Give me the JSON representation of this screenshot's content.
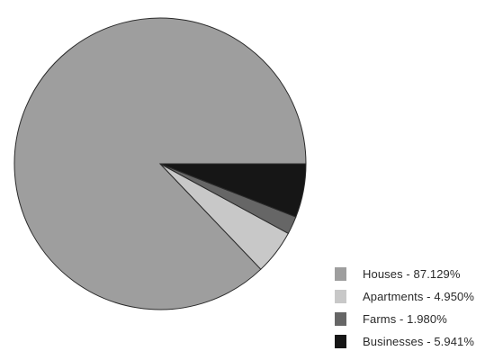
{
  "chart_data": {
    "type": "pie",
    "title": "",
    "slices": [
      {
        "label": "Houses",
        "value": 87.129,
        "legend_text": "Houses - 87.129%",
        "color": "#9e9e9e"
      },
      {
        "label": "Apartments",
        "value": 4.95,
        "legend_text": "Apartments - 4.950%",
        "color": "#c8c8c8"
      },
      {
        "label": "Farms",
        "value": 1.98,
        "legend_text": "Farms - 1.980%",
        "color": "#666666"
      },
      {
        "label": "Businesses",
        "value": 5.941,
        "legend_text": "Businesses - 5.941%",
        "color": "#161616"
      }
    ],
    "legend_position": "bottom-right",
    "start_angle_deg": 0,
    "direction": "counterclockwise"
  }
}
